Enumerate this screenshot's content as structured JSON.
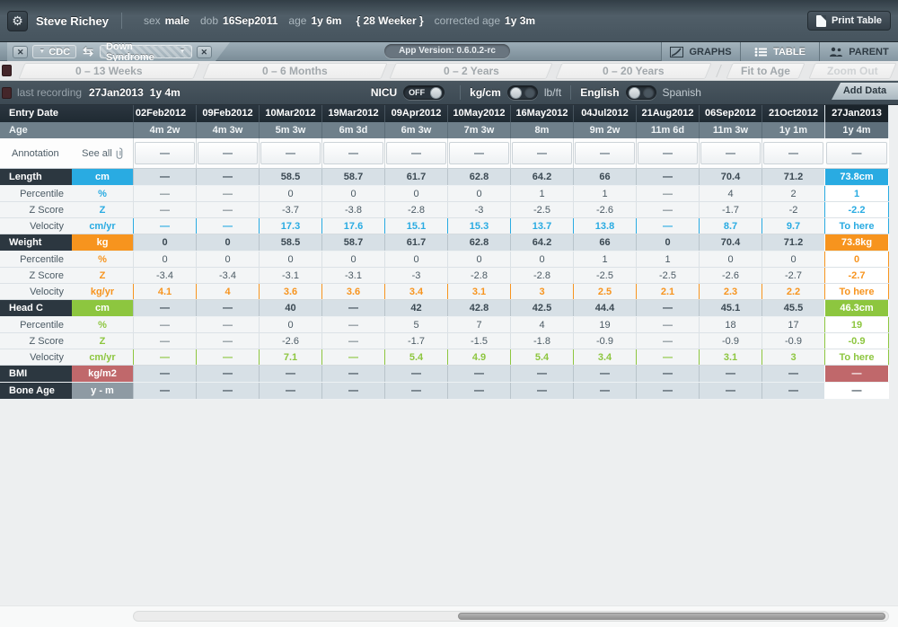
{
  "topbar": {
    "patient_name": "Steve Richey",
    "sex_label": "sex",
    "sex_value": "male",
    "dob_label": "dob",
    "dob_value": "16Sep2011",
    "age_label": "age",
    "age_value": "1y 6m",
    "weeker_badge": "{ 28 Weeker }",
    "corrected_label": "corrected age",
    "corrected_value": "1y 3m",
    "print_button": "Print Table",
    "gear_icon": "gear-icon"
  },
  "tabbar": {
    "chart_primary": "CDC",
    "chart_secondary": "Down Syndrome",
    "app_version": "App Version: 0.6.0.2-rc",
    "nav": [
      {
        "label": "GRAPHS"
      },
      {
        "label": "TABLE"
      },
      {
        "label": "PARENT"
      }
    ],
    "active_view": "TABLE"
  },
  "rangebar": {
    "tabs": [
      "0 – 13 Weeks",
      "0 – 6 Months",
      "0 – 2 Years",
      "0 – 20 Years"
    ],
    "fit_button": "Fit to Age",
    "zoom_out_button": "Zoom Out"
  },
  "infobar": {
    "last_recording_label": "last recording",
    "last_recording_date": "27Jan2013",
    "last_recording_age": "1y 4m",
    "nicu_label": "NICU",
    "nicu_state": "OFF",
    "units_left": "kg/cm",
    "units_right": "lb/ft",
    "lang_left": "English",
    "lang_right": "Spanish",
    "add_data_button": "Add Data"
  },
  "colors": {
    "length": "#29abe2",
    "weight": "#f7941e",
    "head": "#8dc63f",
    "bmi": "#c0686b",
    "bone": "#8e9aa3"
  },
  "table": {
    "corner_label": "Entry Date",
    "age_label": "Age",
    "annotation_label": "Annotation",
    "see_all_label": "See all",
    "columns": [
      {
        "date": "02Feb2012",
        "age": "4m 2w"
      },
      {
        "date": "09Feb2012",
        "age": "4m 3w"
      },
      {
        "date": "10Mar2012",
        "age": "5m 3w"
      },
      {
        "date": "19Mar2012",
        "age": "6m 3d"
      },
      {
        "date": "09Apr2012",
        "age": "6m 3w"
      },
      {
        "date": "10May2012",
        "age": "7m 3w"
      },
      {
        "date": "16May2012",
        "age": "8m"
      },
      {
        "date": "04Jul2012",
        "age": "9m 2w"
      },
      {
        "date": "21Aug2012",
        "age": "11m 6d"
      },
      {
        "date": "06Sep2012",
        "age": "11m 3w"
      },
      {
        "date": "21Oct2012",
        "age": "1y 1m"
      },
      {
        "date": "27Jan2013",
        "age": "1y 4m"
      }
    ],
    "annotation_values": [
      "—",
      "—",
      "—",
      "—",
      "—",
      "—",
      "—",
      "—",
      "—",
      "—",
      "—",
      "—"
    ],
    "rows": [
      {
        "label": "Length",
        "unit": "cm",
        "kind": "main",
        "section": "length",
        "values": [
          "—",
          "—",
          "58.5",
          "58.7",
          "61.7",
          "62.8",
          "64.2",
          "66",
          "—",
          "70.4",
          "71.2",
          "73.8cm"
        ]
      },
      {
        "label": "Percentile",
        "unit": "%",
        "kind": "sub",
        "section": "length",
        "values": [
          "—",
          "—",
          "0",
          "0",
          "0",
          "0",
          "1",
          "1",
          "—",
          "4",
          "2",
          "1"
        ]
      },
      {
        "label": "Z Score",
        "unit": "Z",
        "kind": "sub",
        "section": "length",
        "values": [
          "—",
          "—",
          "-3.7",
          "-3.8",
          "-2.8",
          "-3",
          "-2.5",
          "-2.6",
          "—",
          "-1.7",
          "-2",
          "-2.2"
        ]
      },
      {
        "label": "Velocity",
        "unit": "cm/yr",
        "kind": "vel",
        "section": "length",
        "values": [
          "—",
          "—",
          "17.3",
          "17.6",
          "15.1",
          "15.3",
          "13.7",
          "13.8",
          "—",
          "8.7",
          "9.7",
          "To here"
        ]
      },
      {
        "label": "Weight",
        "unit": "kg",
        "kind": "main",
        "section": "weight",
        "values": [
          "0",
          "0",
          "58.5",
          "58.7",
          "61.7",
          "62.8",
          "64.2",
          "66",
          "0",
          "70.4",
          "71.2",
          "73.8kg"
        ]
      },
      {
        "label": "Percentile",
        "unit": "%",
        "kind": "sub",
        "section": "weight",
        "values": [
          "0",
          "0",
          "0",
          "0",
          "0",
          "0",
          "0",
          "1",
          "1",
          "0",
          "0",
          "0"
        ]
      },
      {
        "label": "Z Score",
        "unit": "Z",
        "kind": "sub",
        "section": "weight",
        "values": [
          "-3.4",
          "-3.4",
          "-3.1",
          "-3.1",
          "-3",
          "-2.8",
          "-2.8",
          "-2.5",
          "-2.5",
          "-2.6",
          "-2.7",
          "-2.7"
        ]
      },
      {
        "label": "Velocity",
        "unit": "kg/yr",
        "kind": "vel",
        "section": "weight",
        "values": [
          "4.1",
          "4",
          "3.6",
          "3.6",
          "3.4",
          "3.1",
          "3",
          "2.5",
          "2.1",
          "2.3",
          "2.2",
          "To here"
        ]
      },
      {
        "label": "Head C",
        "unit": "cm",
        "kind": "main",
        "section": "head",
        "values": [
          "—",
          "—",
          "40",
          "—",
          "42",
          "42.8",
          "42.5",
          "44.4",
          "—",
          "45.1",
          "45.5",
          "46.3cm"
        ]
      },
      {
        "label": "Percentile",
        "unit": "%",
        "kind": "sub",
        "section": "head",
        "values": [
          "—",
          "—",
          "0",
          "—",
          "5",
          "7",
          "4",
          "19",
          "—",
          "18",
          "17",
          "19"
        ]
      },
      {
        "label": "Z Score",
        "unit": "Z",
        "kind": "sub",
        "section": "head",
        "values": [
          "—",
          "—",
          "-2.6",
          "—",
          "-1.7",
          "-1.5",
          "-1.8",
          "-0.9",
          "—",
          "-0.9",
          "-0.9",
          "-0.9"
        ]
      },
      {
        "label": "Velocity",
        "unit": "cm/yr",
        "kind": "vel",
        "section": "head",
        "values": [
          "—",
          "—",
          "7.1",
          "—",
          "5.4",
          "4.9",
          "5.4",
          "3.4",
          "—",
          "3.1",
          "3",
          "To here"
        ]
      },
      {
        "label": "BMI",
        "unit": "kg/m2",
        "kind": "main",
        "section": "bmi",
        "values": [
          "—",
          "—",
          "—",
          "—",
          "—",
          "—",
          "—",
          "—",
          "—",
          "—",
          "—",
          "—"
        ]
      },
      {
        "label": "Bone Age",
        "unit": "y - m",
        "kind": "main",
        "section": "bone",
        "values": [
          "—",
          "—",
          "—",
          "—",
          "—",
          "—",
          "—",
          "—",
          "—",
          "—",
          "—",
          "—"
        ]
      }
    ]
  }
}
